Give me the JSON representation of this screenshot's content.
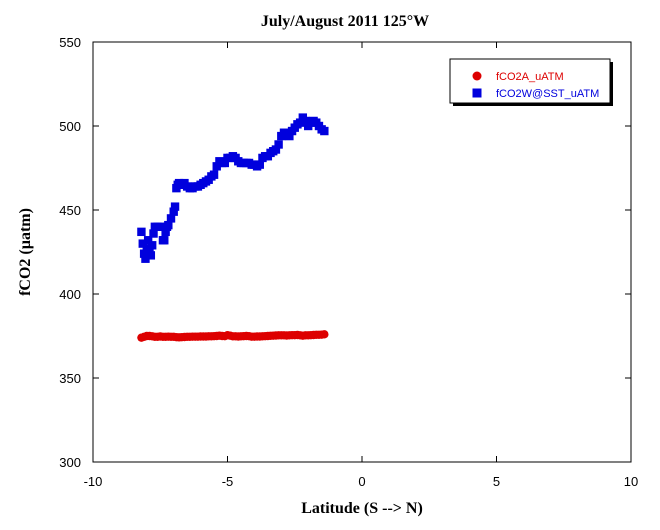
{
  "chart_data": {
    "type": "scatter",
    "title": "July/August 2011 125°W",
    "xlabel": "Latitude (S --> N)",
    "ylabel": "fCO2 (µatm)",
    "xlim": [
      -10,
      10
    ],
    "ylim": [
      300,
      550
    ],
    "xticks": [
      -10,
      -5,
      0,
      5,
      10
    ],
    "yticks": [
      300,
      350,
      400,
      450,
      500,
      550
    ],
    "xtick_labels": [
      "-10",
      "-5",
      "0",
      "5",
      "10"
    ],
    "ytick_labels": [
      "300",
      "350",
      "400",
      "450",
      "500",
      "550"
    ],
    "grid": false,
    "legend_position": "top-right",
    "series": [
      {
        "name": "fCO2A_uATM",
        "color": "#dd0000",
        "marker": "circle",
        "x": [
          -8.2,
          -8.1,
          -8.0,
          -7.9,
          -7.8,
          -7.7,
          -7.6,
          -7.5,
          -7.4,
          -7.3,
          -7.2,
          -7.1,
          -7.0,
          -6.9,
          -6.8,
          -6.7,
          -6.6,
          -6.5,
          -6.4,
          -6.3,
          -6.2,
          -6.1,
          -6.0,
          -5.9,
          -5.8,
          -5.7,
          -5.6,
          -5.5,
          -5.4,
          -5.3,
          -5.2,
          -5.1,
          -5.0,
          -4.9,
          -4.8,
          -4.7,
          -4.6,
          -4.5,
          -4.4,
          -4.3,
          -4.2,
          -4.1,
          -4.0,
          -3.9,
          -3.8,
          -3.7,
          -3.6,
          -3.5,
          -3.4,
          -3.3,
          -3.2,
          -3.1,
          -3.0,
          -2.9,
          -2.8,
          -2.7,
          -2.6,
          -2.5,
          -2.4,
          -2.3,
          -2.2,
          -2.1,
          -2.0,
          -1.9,
          -1.8,
          -1.7,
          -1.6,
          -1.5,
          -1.4
        ],
        "y": [
          374,
          374.5,
          375,
          375,
          374.8,
          374.5,
          374.5,
          374.7,
          374.5,
          374.5,
          374.6,
          374.5,
          374.5,
          374.3,
          374.2,
          374.3,
          374.4,
          374.5,
          374.5,
          374.6,
          374.6,
          374.6,
          374.7,
          374.7,
          374.7,
          374.8,
          374.8,
          374.9,
          375,
          375.2,
          375,
          374.9,
          375.5,
          375.2,
          374.8,
          374.8,
          374.7,
          374.8,
          374.9,
          375,
          374.9,
          374.6,
          374.6,
          374.7,
          374.7,
          374.8,
          374.9,
          375,
          375.1,
          375.2,
          375.3,
          375.4,
          375.4,
          375.4,
          375.3,
          375.4,
          375.5,
          375.5,
          375.6,
          375.4,
          375.2,
          375.4,
          375.4,
          375.5,
          375.6,
          375.7,
          375.7,
          375.8,
          376
        ]
      },
      {
        "name": "fCO2W@SST_uATM",
        "color": "#0000dd",
        "marker": "square",
        "x": [
          -8.2,
          -8.15,
          -8.1,
          -8.05,
          -8.0,
          -7.95,
          -7.9,
          -7.85,
          -7.8,
          -7.75,
          -7.7,
          -7.6,
          -7.5,
          -7.4,
          -7.35,
          -7.3,
          -7.25,
          -7.2,
          -7.1,
          -7.0,
          -6.95,
          -6.9,
          -6.85,
          -6.8,
          -6.7,
          -6.6,
          -6.5,
          -6.4,
          -6.3,
          -6.2,
          -6.1,
          -6.0,
          -5.9,
          -5.8,
          -5.7,
          -5.6,
          -5.5,
          -5.4,
          -5.3,
          -5.2,
          -5.1,
          -5.0,
          -4.9,
          -4.8,
          -4.7,
          -4.6,
          -4.5,
          -4.4,
          -4.3,
          -4.2,
          -4.1,
          -4.0,
          -3.9,
          -3.8,
          -3.7,
          -3.6,
          -3.5,
          -3.4,
          -3.3,
          -3.2,
          -3.1,
          -3.0,
          -2.9,
          -2.8,
          -2.7,
          -2.6,
          -2.5,
          -2.4,
          -2.3,
          -2.2,
          -2.1,
          -2.0,
          -1.9,
          -1.8,
          -1.7,
          -1.6,
          -1.5,
          -1.4
        ],
        "y": [
          437,
          430,
          424,
          421,
          427,
          432,
          426,
          423,
          429,
          436,
          440,
          440,
          440,
          432,
          432,
          437,
          440,
          441,
          445,
          449,
          452,
          463,
          465,
          466,
          465,
          466,
          464,
          463,
          463,
          464,
          464,
          465,
          466,
          467,
          468,
          470,
          471,
          476,
          479,
          478,
          478,
          481,
          481,
          482,
          481,
          479,
          478,
          478,
          478,
          478,
          477,
          477,
          476,
          477,
          481,
          482,
          482,
          484,
          485,
          486,
          489,
          494,
          496,
          495,
          494,
          497,
          499,
          501,
          502,
          505,
          503,
          500,
          502,
          503,
          502,
          500,
          498,
          497
        ]
      }
    ]
  }
}
